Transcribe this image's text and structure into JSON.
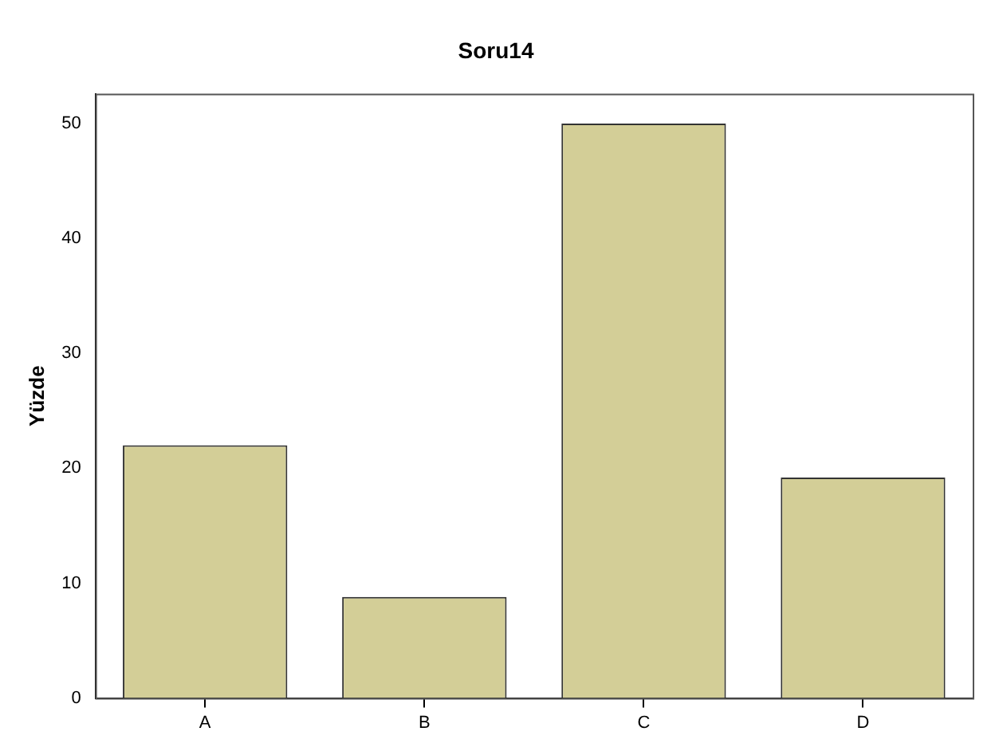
{
  "chart_data": {
    "type": "bar",
    "title": "Soru14",
    "ylabel": "Yüzde",
    "categories": [
      "A",
      "B",
      "C",
      "D"
    ],
    "values": [
      22,
      8.8,
      50,
      19.2
    ],
    "color": "#d3ce97",
    "ylim": [
      0,
      52.6
    ],
    "yticks": [
      0,
      10,
      20,
      30,
      40,
      50
    ],
    "grid": false,
    "legend": false
  }
}
